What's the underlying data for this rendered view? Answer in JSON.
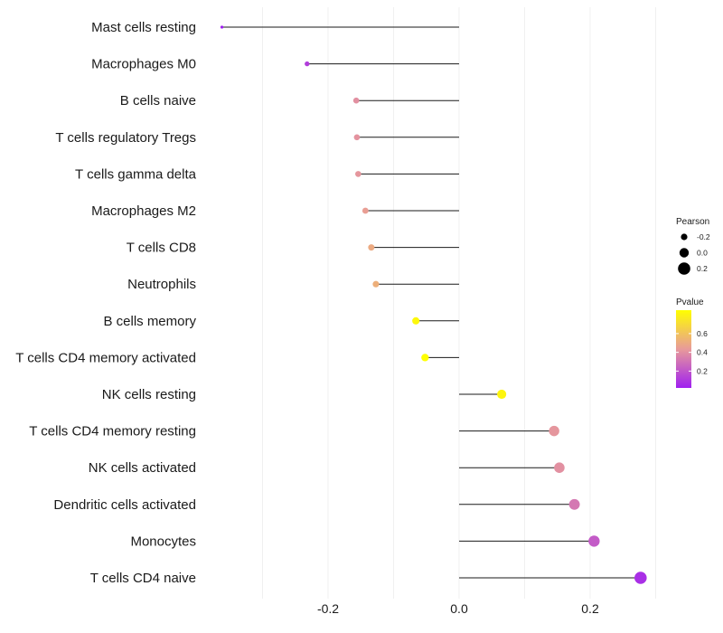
{
  "chart_data": {
    "type": "lollipop",
    "title": "",
    "xlabel": "",
    "ylabel": "",
    "xlim": [
      -0.38,
      0.3
    ],
    "x_ticks": [
      -0.2,
      0.0,
      0.2
    ],
    "x_tick_labels": [
      "-0.2",
      "0.0",
      "0.2"
    ],
    "grid": true,
    "categories": [
      "Mast cells resting",
      "Macrophages M0",
      "B cells naive",
      "T cells regulatory  Tregs",
      "T cells gamma delta",
      "Macrophages M2",
      "T cells CD8",
      "Neutrophils",
      "B cells memory",
      "T cells CD4 memory activated",
      "NK cells resting",
      "T cells CD4 memory resting",
      "NK cells activated",
      "Dendritic cells activated",
      "Monocytes",
      "T cells CD4 naive"
    ],
    "pearson": [
      -0.362,
      -0.232,
      -0.157,
      -0.156,
      -0.154,
      -0.143,
      -0.134,
      -0.127,
      -0.066,
      -0.052,
      0.065,
      0.145,
      0.153,
      0.176,
      0.206,
      0.277
    ],
    "pvalue": [
      0.02,
      0.12,
      0.4,
      0.41,
      0.42,
      0.45,
      0.5,
      0.52,
      0.82,
      0.85,
      0.81,
      0.42,
      0.4,
      0.32,
      0.22,
      0.07
    ],
    "legend": {
      "size_title": "Pearson",
      "size_values": [
        -0.2,
        0.0,
        0.2
      ],
      "size_labels": [
        "-0.2",
        "0.0",
        "0.2"
      ],
      "color_title": "Pvalue",
      "color_range": [
        0.02,
        0.85
      ],
      "color_ticks": [
        0.2,
        0.4,
        0.6
      ],
      "color_tick_labels": [
        "0.2",
        "0.4",
        "0.6"
      ],
      "color_low": "#a020f0",
      "color_mid": "#e89a9a",
      "color_high": "#ffff00",
      "placement": "right"
    }
  }
}
